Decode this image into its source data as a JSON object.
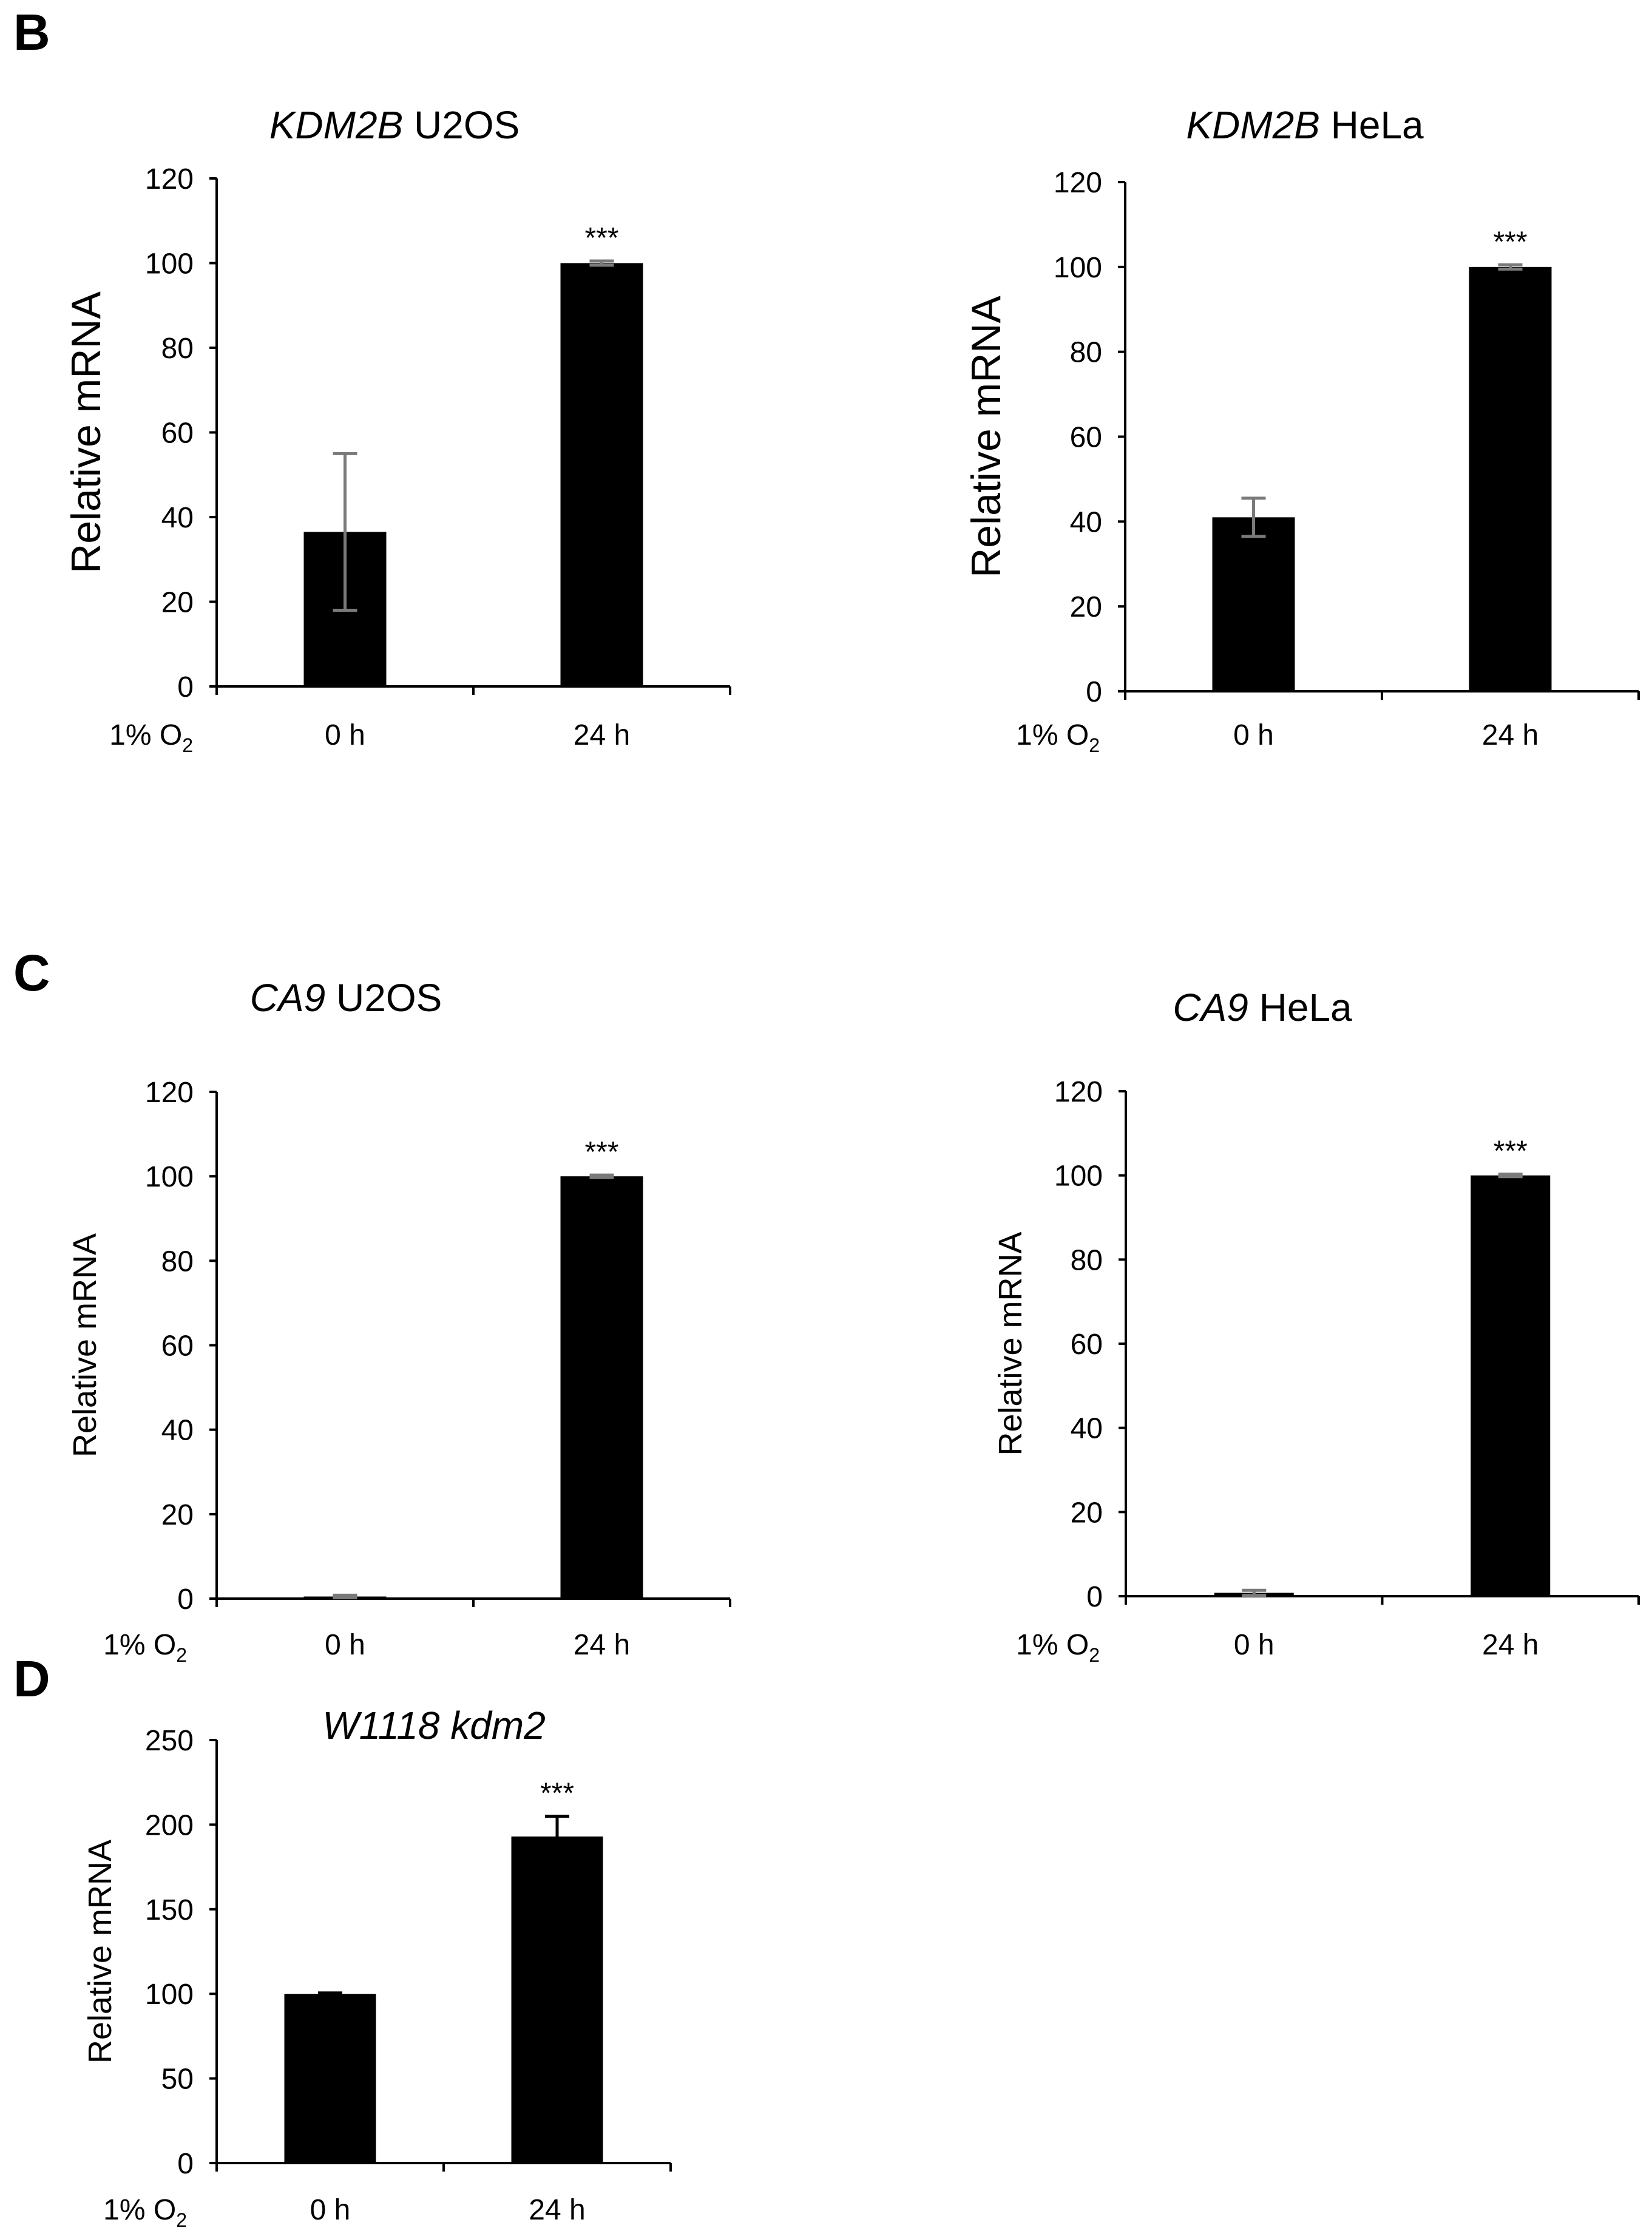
{
  "panels": [
    {
      "letter": "B"
    },
    {
      "letter": "C"
    },
    {
      "letter": "D"
    }
  ],
  "chart_data": [
    {
      "type": "bar",
      "title_italic": "KDM2B",
      "title_rest": " U2OS",
      "ylabel": "Relative mRNA",
      "condition_label": "1% O",
      "condition_sub": "2",
      "categories": [
        "0 h",
        "24 h"
      ],
      "values": [
        36.5,
        100
      ],
      "errors": [
        18.5,
        0.5
      ],
      "significance": [
        "",
        "***"
      ],
      "ylim": [
        0,
        120
      ],
      "yticks": [
        0,
        20,
        40,
        60,
        80,
        100,
        120
      ]
    },
    {
      "type": "bar",
      "title_italic": "KDM2B",
      "title_rest": " HeLa",
      "ylabel": "Relative mRNA",
      "condition_label": "1% O",
      "condition_sub": "2",
      "categories": [
        "0 h",
        "24 h"
      ],
      "values": [
        41,
        100
      ],
      "errors": [
        4.5,
        0.5
      ],
      "significance": [
        "",
        "***"
      ],
      "ylim": [
        0,
        120
      ],
      "yticks": [
        0,
        20,
        40,
        60,
        80,
        100,
        120
      ]
    },
    {
      "type": "bar",
      "title_italic": "CA9",
      "title_rest": " U2OS",
      "ylabel": "Relative mRNA",
      "condition_label": "1% O",
      "condition_sub": "2",
      "categories": [
        "0 h",
        "24 h"
      ],
      "values": [
        0.5,
        100
      ],
      "errors": [
        0.3,
        0.3
      ],
      "significance": [
        "",
        "***"
      ],
      "ylim": [
        0,
        120
      ],
      "yticks": [
        0,
        20,
        40,
        60,
        80,
        100,
        120
      ]
    },
    {
      "type": "bar",
      "title_italic": "CA9",
      "title_rest": " HeLa",
      "ylabel": "Relative mRNA",
      "condition_label": "1% O",
      "condition_sub": "2",
      "categories": [
        "0 h",
        "24 h"
      ],
      "values": [
        0.8,
        100
      ],
      "errors": [
        0.6,
        0.3
      ],
      "significance": [
        "",
        "***"
      ],
      "ylim": [
        0,
        120
      ],
      "yticks": [
        0,
        20,
        40,
        60,
        80,
        100,
        120
      ]
    },
    {
      "type": "bar",
      "title_italic": "W1118 kdm2",
      "title_rest": "",
      "ylabel": "Relative mRNA",
      "condition_label": "1% O",
      "condition_sub": "2",
      "categories": [
        "0 h",
        "24 h"
      ],
      "values": [
        100,
        193
      ],
      "errors": [
        0.5,
        12
      ],
      "significance": [
        "",
        "***"
      ],
      "ylim": [
        0,
        250
      ],
      "yticks": [
        0,
        50,
        100,
        150,
        200,
        250
      ]
    }
  ]
}
